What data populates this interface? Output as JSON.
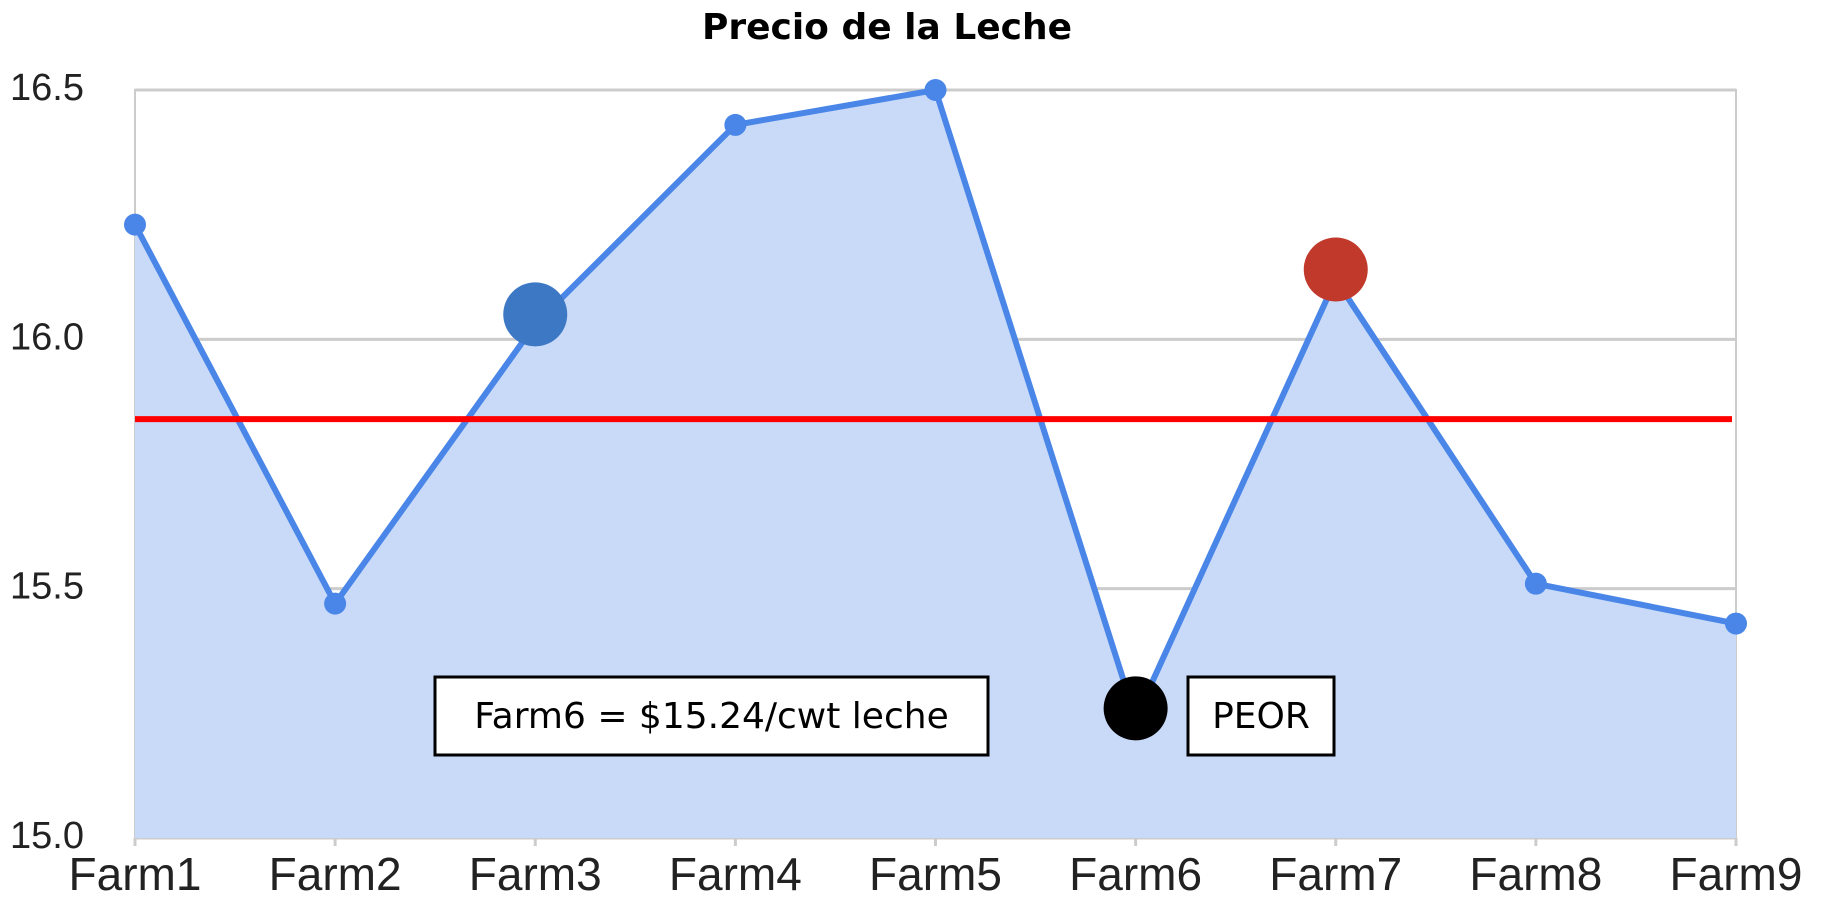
{
  "chart_data": {
    "type": "area",
    "title": "Precio de la Leche",
    "categories": [
      "Farm1",
      "Farm2",
      "Farm3",
      "Farm4",
      "Farm5",
      "Farm6",
      "Farm7",
      "Farm8",
      "Farm9"
    ],
    "values": [
      16.23,
      15.47,
      16.03,
      16.43,
      16.5,
      15.24,
      16.12,
      15.51,
      15.43
    ],
    "color": "#4a86e8",
    "fill": "#c9daf8",
    "ylim": [
      15.0,
      16.5
    ],
    "yticks": [
      {
        "value": 15.0,
        "label": "15.0"
      },
      {
        "value": 15.5,
        "label": "15.5"
      },
      {
        "value": 16.0,
        "label": "16.0"
      },
      {
        "value": 16.5,
        "label": "16.5"
      }
    ],
    "grid": true,
    "reference_line": {
      "value": 15.84,
      "color": "#ff0000"
    },
    "highlights": [
      {
        "index": 2,
        "color": "#3d78c4"
      },
      {
        "index": 5,
        "color": "#000000"
      },
      {
        "index": 6,
        "color": "#c0392b"
      }
    ],
    "annotations": [
      {
        "text": "Farm6 = $15.24/cwt leche"
      },
      {
        "text": "PEOR"
      }
    ]
  }
}
